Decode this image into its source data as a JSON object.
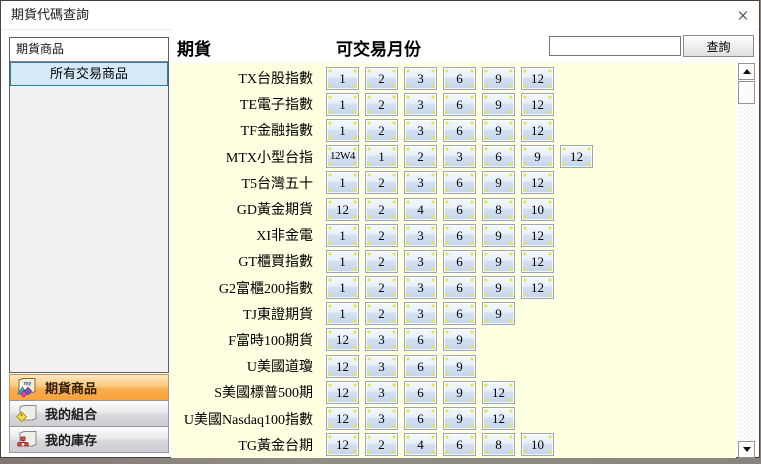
{
  "window": {
    "title": "期貨代碼查詢"
  },
  "sidebar": {
    "header": "期貨商品",
    "items": [
      {
        "label": "所有交易商品",
        "selected": true
      }
    ],
    "nav": [
      {
        "label": "期貨商品",
        "active": true,
        "icon": "products-folder-icon"
      },
      {
        "label": "我的組合",
        "active": false,
        "icon": "portfolio-folder-icon"
      },
      {
        "label": "我的庫存",
        "active": false,
        "icon": "inventory-folder-icon"
      }
    ]
  },
  "main": {
    "product_header": "期貨",
    "months_header": "可交易月份",
    "search": {
      "value": "",
      "button": "查詢"
    },
    "rows": [
      {
        "name": "TX台股指數",
        "months": [
          "1",
          "2",
          "3",
          "6",
          "9",
          "12"
        ]
      },
      {
        "name": "TE電子指數",
        "months": [
          "1",
          "2",
          "3",
          "6",
          "9",
          "12"
        ]
      },
      {
        "name": "TF金融指數",
        "months": [
          "1",
          "2",
          "3",
          "6",
          "9",
          "12"
        ]
      },
      {
        "name": "MTX小型台指",
        "months": [
          "12W4",
          "1",
          "2",
          "3",
          "6",
          "9",
          "12"
        ]
      },
      {
        "name": "T5台灣五十",
        "months": [
          "1",
          "2",
          "3",
          "6",
          "9",
          "12"
        ]
      },
      {
        "name": "GD黃金期貨",
        "months": [
          "12",
          "2",
          "4",
          "6",
          "8",
          "10"
        ]
      },
      {
        "name": "XI非金電",
        "months": [
          "1",
          "2",
          "3",
          "6",
          "9",
          "12"
        ]
      },
      {
        "name": "GT櫃買指數",
        "months": [
          "1",
          "2",
          "3",
          "6",
          "9",
          "12"
        ]
      },
      {
        "name": "G2富櫃200指數",
        "months": [
          "1",
          "2",
          "3",
          "6",
          "9",
          "12"
        ]
      },
      {
        "name": "TJ東證期貨",
        "months": [
          "1",
          "2",
          "3",
          "6",
          "9"
        ]
      },
      {
        "name": "F富時100期貨",
        "months": [
          "12",
          "3",
          "6",
          "9"
        ]
      },
      {
        "name": "U美國道瓊",
        "months": [
          "12",
          "3",
          "6",
          "9"
        ]
      },
      {
        "name": "S美國標普500期",
        "months": [
          "12",
          "3",
          "6",
          "9",
          "12"
        ]
      },
      {
        "name": "U美國Nasdaq100指數",
        "months": [
          "12",
          "3",
          "6",
          "9",
          "12"
        ]
      },
      {
        "name": "TG黃金台期",
        "months": [
          "12",
          "2",
          "4",
          "6",
          "8",
          "10"
        ]
      }
    ]
  },
  "colors": {
    "content_bg": "#FFFFE1",
    "month_button_border": "#9CA6B4",
    "month_button_fill_top": "#F4F8FD",
    "month_button_fill_bottom": "#C5D5EA",
    "corner_dot": "#E2E64C",
    "selected_item_bg": "#D5EAF8",
    "selected_item_border": "#2E7CB5",
    "active_nav_top": "#FFE8BF",
    "active_nav_bottom": "#F8A33C"
  }
}
